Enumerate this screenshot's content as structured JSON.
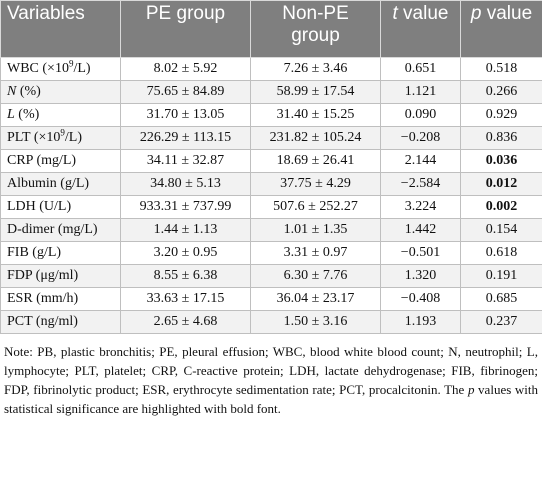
{
  "header": [
    [
      {
        "text": "Variables"
      }
    ],
    [
      {
        "text": "PE group"
      }
    ],
    [
      {
        "text": "Non-PE group"
      }
    ],
    [
      {
        "text": "t",
        "style": "italic"
      },
      {
        "text": " value"
      }
    ],
    [
      {
        "text": "p",
        "style": "italic"
      },
      {
        "text": " value"
      }
    ]
  ],
  "rows": [
    {
      "label": [
        {
          "text": "WBC (×10"
        },
        {
          "text": "9",
          "style": "sup"
        },
        {
          "text": "/L)"
        }
      ],
      "pe": "8.02 ± 5.92",
      "nonpe": "7.26 ± 3.46",
      "t": "0.651",
      "p": "0.518"
    },
    {
      "label": [
        {
          "text": "N",
          "style": "italic"
        },
        {
          "text": " (%)"
        }
      ],
      "pe": "75.65 ± 84.89",
      "nonpe": "58.99 ± 17.54",
      "t": "1.121",
      "p": "0.266"
    },
    {
      "label": [
        {
          "text": "L",
          "style": "italic"
        },
        {
          "text": " (%)"
        }
      ],
      "pe": "31.70 ± 13.05",
      "nonpe": "31.40 ± 15.25",
      "t": "0.090",
      "p": "0.929"
    },
    {
      "label": [
        {
          "text": "PLT (×10"
        },
        {
          "text": "9",
          "style": "sup"
        },
        {
          "text": "/L)"
        }
      ],
      "pe": "226.29 ± 113.15",
      "nonpe": "231.82 ± 105.24",
      "t": "−0.208",
      "p": "0.836"
    },
    {
      "label": [
        {
          "text": "CRP (mg/L)"
        }
      ],
      "pe": "34.11 ± 32.87",
      "nonpe": "18.69 ± 26.41",
      "t": "2.144",
      "p": "0.036",
      "p_bold": true
    },
    {
      "label": [
        {
          "text": "Albumin (g/L)"
        }
      ],
      "pe": "34.80 ± 5.13",
      "nonpe": "37.75 ± 4.29",
      "t": "−2.584",
      "p": "0.012",
      "p_bold": true
    },
    {
      "label": [
        {
          "text": "LDH (U/L)"
        }
      ],
      "pe": "933.31 ± 737.99",
      "nonpe": "507.6 ± 252.27",
      "t": "3.224",
      "p": "0.002",
      "p_bold": true
    },
    {
      "label": [
        {
          "text": "D-dimer (mg/L)"
        }
      ],
      "pe": "1.44 ± 1.13",
      "nonpe": "1.01 ± 1.35",
      "t": "1.442",
      "p": "0.154"
    },
    {
      "label": [
        {
          "text": "FIB (g/L)"
        }
      ],
      "pe": "3.20 ± 0.95",
      "nonpe": "3.31 ± 0.97",
      "t": "−0.501",
      "p": "0.618"
    },
    {
      "label": [
        {
          "text": "FDP (μg/ml)"
        }
      ],
      "pe": "8.55 ± 6.38",
      "nonpe": "6.30 ± 7.76",
      "t": "1.320",
      "p": "0.191"
    },
    {
      "label": [
        {
          "text": "ESR (mm/h)"
        }
      ],
      "pe": "33.63 ± 17.15",
      "nonpe": "36.04 ± 23.17",
      "t": "−0.408",
      "p": "0.685"
    },
    {
      "label": [
        {
          "text": "PCT (ng/ml)"
        }
      ],
      "pe": "2.65 ± 4.68",
      "nonpe": "1.50 ± 3.16",
      "t": "1.193",
      "p": "0.237"
    }
  ],
  "note": [
    {
      "text": "Note: PB, plastic bronchitis; PE, pleural effusion; WBC, blood white blood count; N, neutrophil; L, lymphocyte; PLT, platelet; CRP, C-reactive protein; LDH, lactate dehydrogenase; FIB, fibrinogen; FDP, fibrinolytic product; ESR, erythrocyte sedimentation rate; PCT, procalcitonin. The "
    },
    {
      "text": "p",
      "style": "italic"
    },
    {
      "text": " values with statistical significance are highlighted with bold font."
    }
  ]
}
